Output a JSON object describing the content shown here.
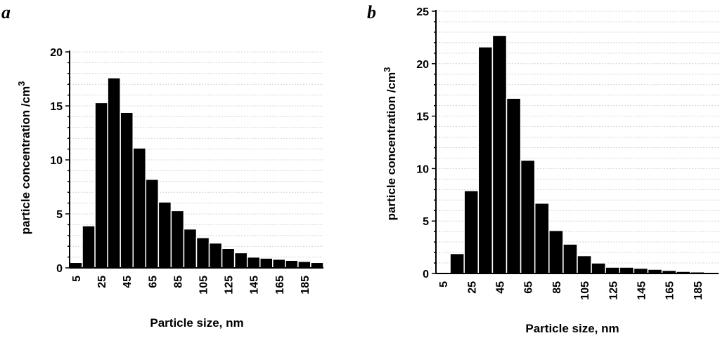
{
  "chart_data": [
    {
      "panel": "a",
      "type": "bar",
      "categories": [
        "5",
        "15",
        "25",
        "35",
        "45",
        "55",
        "65",
        "75",
        "85",
        "95",
        "105",
        "115",
        "125",
        "135",
        "145",
        "155",
        "165",
        "175",
        "185",
        "195"
      ],
      "tick_labels": [
        "5",
        "25",
        "45",
        "65",
        "85",
        "105",
        "125",
        "145",
        "165",
        "185"
      ],
      "values": [
        0.5,
        3.9,
        15.3,
        17.6,
        14.4,
        11.1,
        8.2,
        6.1,
        5.3,
        3.6,
        2.8,
        2.3,
        1.8,
        1.4,
        1.0,
        0.9,
        0.8,
        0.7,
        0.6,
        0.5
      ],
      "xlabel": "Particle size, nm",
      "ylabel": "particle concentration /cm",
      "ylabel_sup": "3",
      "ylim": [
        0,
        20
      ],
      "yticks": [
        0,
        5,
        10,
        15,
        20
      ],
      "grid": true
    },
    {
      "panel": "b",
      "type": "bar",
      "categories": [
        "5",
        "15",
        "25",
        "35",
        "45",
        "55",
        "65",
        "75",
        "85",
        "95",
        "105",
        "115",
        "125",
        "135",
        "145",
        "155",
        "165",
        "175",
        "185",
        "195"
      ],
      "tick_labels": [
        "5",
        "25",
        "45",
        "65",
        "85",
        "105",
        "125",
        "145",
        "165",
        "185"
      ],
      "values": [
        0.1,
        1.9,
        7.9,
        21.6,
        22.7,
        16.7,
        10.8,
        6.7,
        4.1,
        2.8,
        1.7,
        1.0,
        0.6,
        0.6,
        0.5,
        0.4,
        0.3,
        0.2,
        0.15,
        0.1
      ],
      "xlabel": "Particle size, nm",
      "ylabel": "particle concentration /cm",
      "ylabel_sup": "3",
      "ylim": [
        0,
        25
      ],
      "yticks": [
        0,
        5,
        10,
        15,
        20,
        25
      ],
      "grid": true
    }
  ]
}
